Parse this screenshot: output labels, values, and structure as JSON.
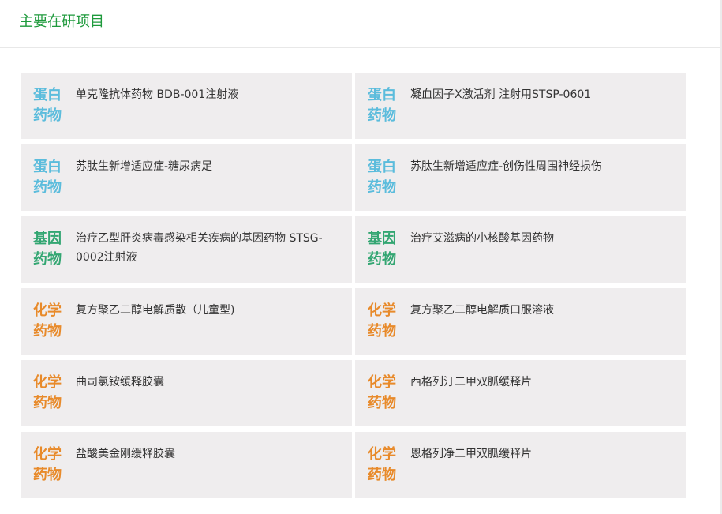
{
  "header": {
    "title": "主要在研项目"
  },
  "colors": {
    "title": "#1e9a3c",
    "protein": "#5bbcdc",
    "gene": "#33a672",
    "chemical": "#e88a2a",
    "card_bg": "#efedee"
  },
  "projects": [
    {
      "tag": "蛋白药物",
      "type": "protein",
      "name": "单克隆抗体药物 BDB-001注射液"
    },
    {
      "tag": "蛋白药物",
      "type": "protein",
      "name": "凝血因子X激活剂 注射用STSP-0601"
    },
    {
      "tag": "蛋白药物",
      "type": "protein",
      "name": "苏肽生新增适应症-糖尿病足"
    },
    {
      "tag": "蛋白药物",
      "type": "protein",
      "name": "苏肽生新增适应症-创伤性周围神经损伤"
    },
    {
      "tag": "基因药物",
      "type": "gene",
      "name": "治疗乙型肝炎病毒感染相关疾病的基因药物 STSG-0002注射液"
    },
    {
      "tag": "基因药物",
      "type": "gene",
      "name": "治疗艾滋病的小核酸基因药物"
    },
    {
      "tag": "化学药物",
      "type": "chemical",
      "name": "复方聚乙二醇电解质散（儿童型)"
    },
    {
      "tag": "化学药物",
      "type": "chemical",
      "name": "复方聚乙二醇电解质口服溶液"
    },
    {
      "tag": "化学药物",
      "type": "chemical",
      "name": "曲司氯铵缓释胶囊"
    },
    {
      "tag": "化学药物",
      "type": "chemical",
      "name": "西格列汀二甲双胍缓释片"
    },
    {
      "tag": "化学药物",
      "type": "chemical",
      "name": "盐酸美金刚缓释胶囊"
    },
    {
      "tag": "化学药物",
      "type": "chemical",
      "name": "恩格列净二甲双胍缓释片"
    }
  ]
}
